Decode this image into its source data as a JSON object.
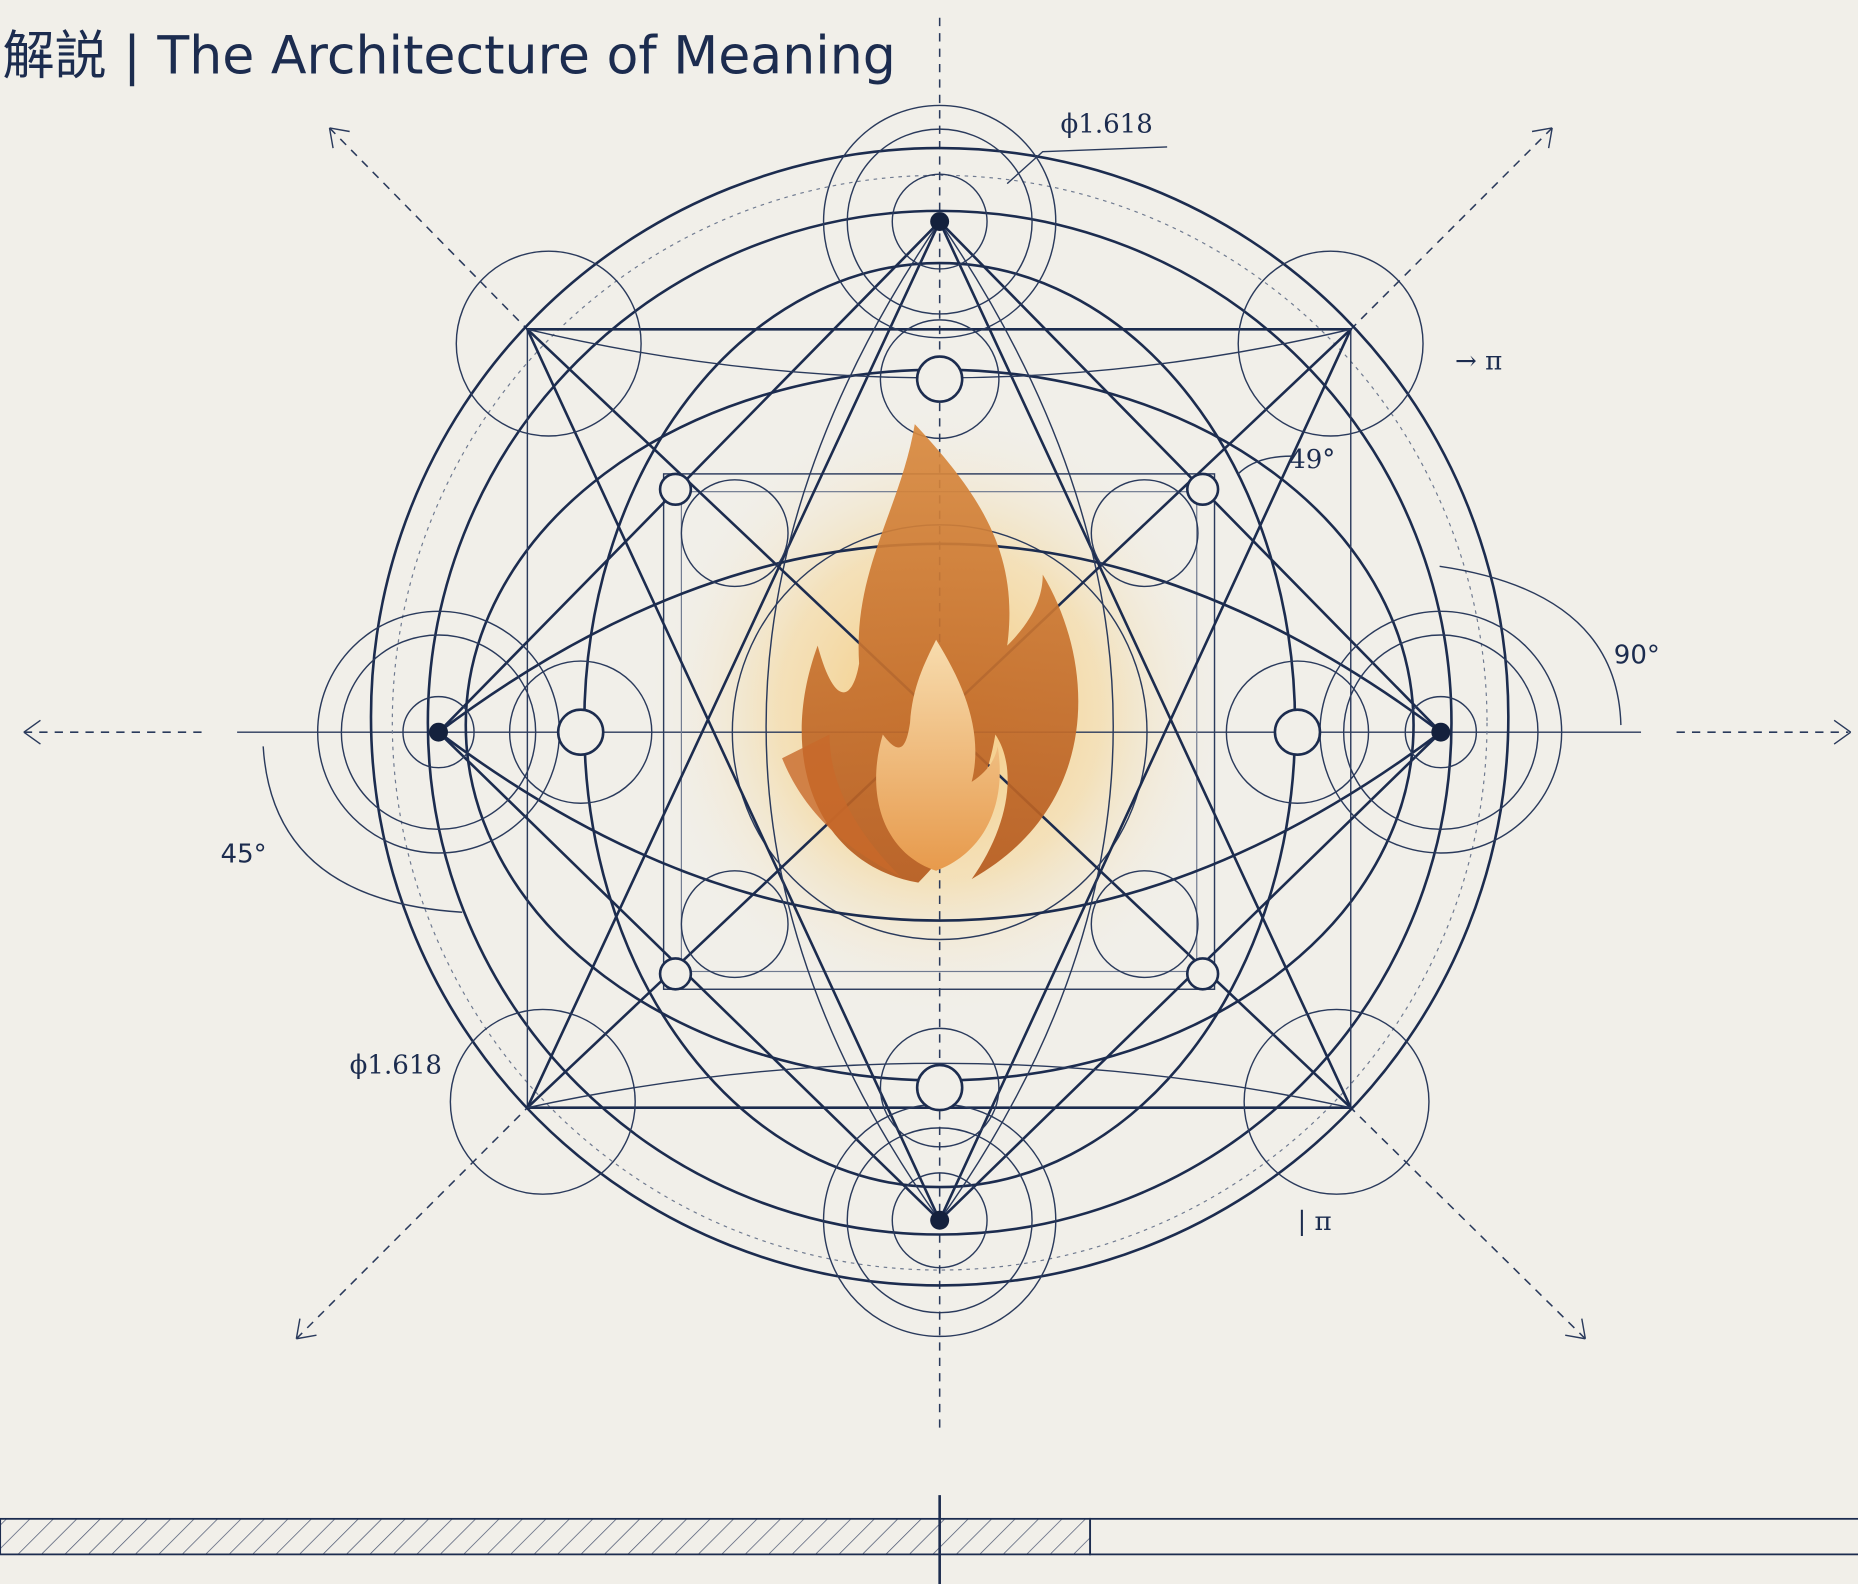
{
  "header": {
    "title": "解説 | The Architecture of Meaning"
  },
  "labels": {
    "phi_top": "ϕ1.618",
    "pi_right": "→ π",
    "angle_49": "49°",
    "angle_90": "90°",
    "angle_45": "45°",
    "phi_left": "ϕ1.618",
    "pi_bottom": "| π"
  }
}
